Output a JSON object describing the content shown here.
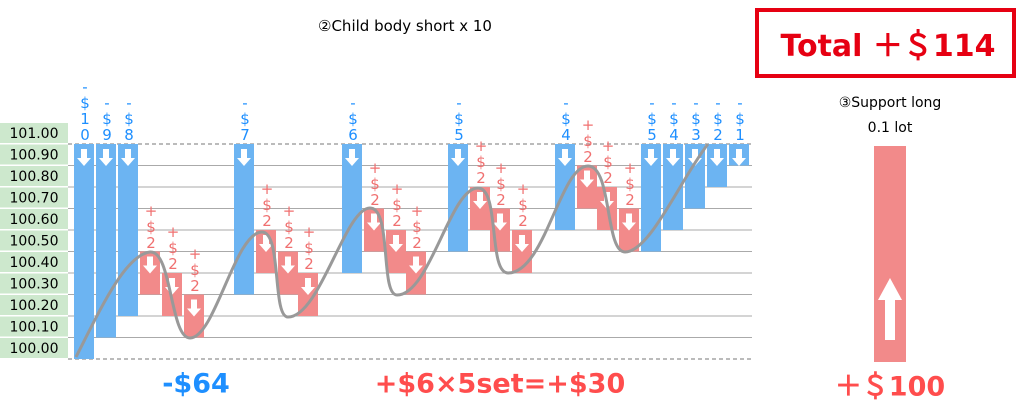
{
  "title": "②Child body short x 10",
  "total": "Total ＋＄114",
  "price_levels": [
    "101.00",
    "100.90",
    "100.80",
    "100.70",
    "100.60",
    "100.50",
    "100.40",
    "100.30",
    "100.20",
    "100.10",
    "100.00"
  ],
  "short_labels": [
    "-$10",
    "-$9",
    "-$8",
    "-$7",
    "-$6",
    "-$5",
    "-$4",
    "-$5",
    "-$4",
    "-$3",
    "-$2",
    "-$1"
  ],
  "long_labels": [
    "+$2",
    "+$2",
    "+$2",
    "+$2",
    "+$2",
    "+$2",
    "+$2",
    "+$2",
    "+$2",
    "+$2",
    "+$2",
    "+$2",
    "+$2",
    "+$2",
    "+$2"
  ],
  "support": {
    "title": "③Support long",
    "lot": "0.1 lot",
    "result": "＋＄100"
  },
  "short_result": "-$64",
  "long_result": "+$6×5set=+$30"
}
